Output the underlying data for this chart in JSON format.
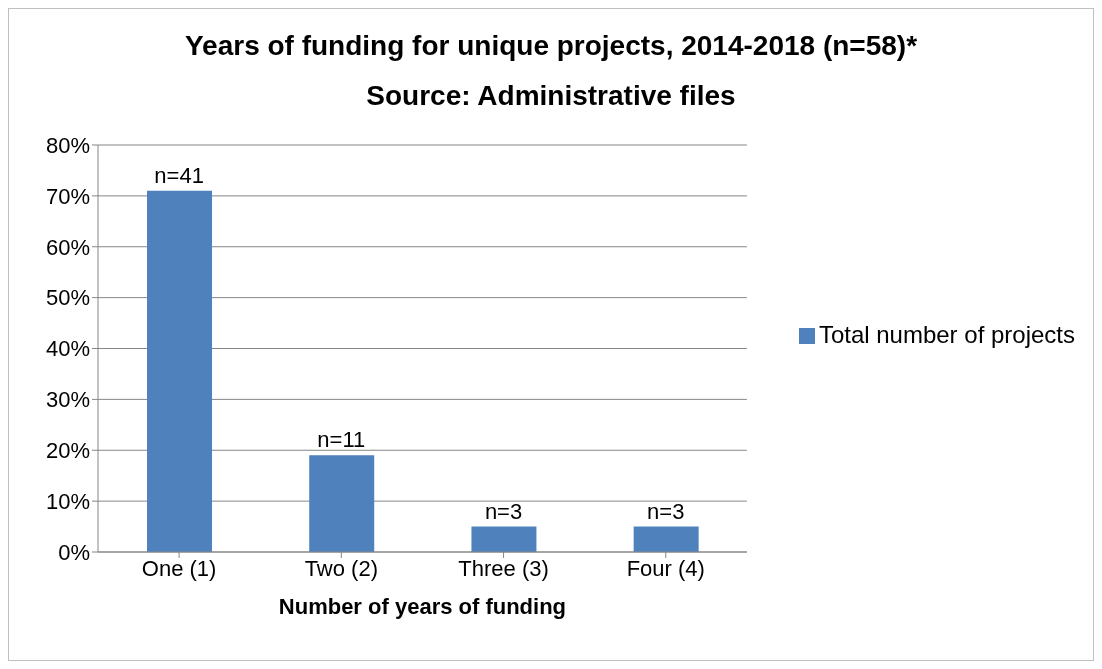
{
  "chart_data": {
    "type": "bar",
    "title": "Years of funding for unique projects, 2014-2018 (n=58)*",
    "subtitle": "Source: Administrative files",
    "xlabel": "Number of years of funding",
    "categories": [
      "One (1)",
      "Two (2)",
      "Three (3)",
      "Four (4)"
    ],
    "series": [
      {
        "name": "Total number of projects",
        "color": "#4f81bd",
        "values": [
          71,
          19,
          5,
          5
        ]
      }
    ],
    "annotations": [
      {
        "text": "n=41",
        "x": "One (1)",
        "y": 71
      },
      {
        "text": "n=11",
        "x": "Two (2)",
        "y": 19
      },
      {
        "text": "n=3",
        "x": "Three (3)",
        "y": 5
      },
      {
        "text": "n=3",
        "x": "Four (4)",
        "y": 5
      }
    ],
    "ylim": [
      0,
      80
    ],
    "yticks": [
      {
        "value": 0,
        "label": "0%"
      },
      {
        "value": 10,
        "label": "10%"
      },
      {
        "value": 20,
        "label": "20%"
      },
      {
        "value": 30,
        "label": "30%"
      },
      {
        "value": 40,
        "label": "40%"
      },
      {
        "value": 50,
        "label": "50%"
      },
      {
        "value": 60,
        "label": "60%"
      },
      {
        "value": 70,
        "label": "70%"
      },
      {
        "value": 80,
        "label": "80%"
      }
    ],
    "grid": "y",
    "legend": "right"
  }
}
